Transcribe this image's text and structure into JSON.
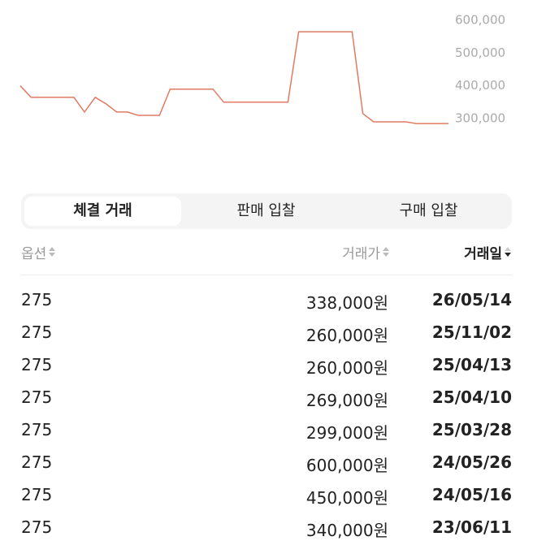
{
  "price_chart": {
    "yticks": [
      {
        "value": 600000,
        "label": "600,000"
      },
      {
        "value": 500000,
        "label": "500,000"
      },
      {
        "value": 400000,
        "label": "400,000"
      },
      {
        "value": 300000,
        "label": "300,000"
      }
    ],
    "ylim": [
      300000,
      600000
    ],
    "color": "#e07a63",
    "values": [
      400000,
      365000,
      365000,
      365000,
      365000,
      365000,
      320000,
      365000,
      345000,
      320000,
      320000,
      310000,
      310000,
      310000,
      390000,
      390000,
      390000,
      390000,
      390000,
      350000,
      350000,
      350000,
      350000,
      350000,
      350000,
      350000,
      565000,
      565000,
      565000,
      565000,
      565000,
      565000,
      315000,
      290000,
      290000,
      290000,
      290000,
      285000,
      285000,
      285000,
      285000
    ]
  },
  "tabs": [
    "체결 거래",
    "판매 입찰",
    "구매 입찰"
  ],
  "table": {
    "headers": [
      "옵션",
      "거래가",
      "거래일"
    ],
    "rows": [
      [
        "275",
        "338,000원",
        "26/05/14"
      ],
      [
        "275",
        "260,000원",
        "25/11/02"
      ],
      [
        "275",
        "260,000원",
        "25/04/13"
      ],
      [
        "275",
        "269,000원",
        "25/04/10"
      ],
      [
        "275",
        "299,000원",
        "25/03/28"
      ],
      [
        "275",
        "600,000원",
        "24/05/26"
      ],
      [
        "275",
        "450,000원",
        "24/05/16"
      ],
      [
        "275",
        "340,000원",
        "23/06/11"
      ]
    ]
  }
}
